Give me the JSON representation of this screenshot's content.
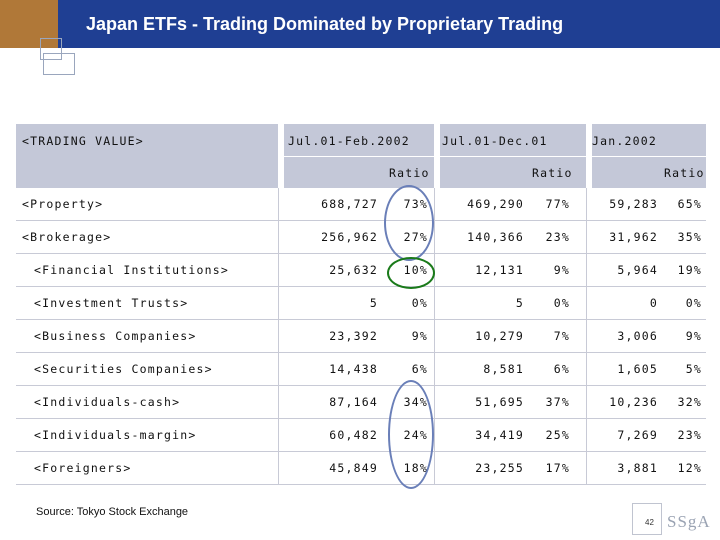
{
  "title": "Japan ETFs - Trading Dominated by Proprietary Trading",
  "table": {
    "header": {
      "label": "<TRADING VALUE>",
      "period1": "Jul.01-Feb.2002",
      "period2": "Jul.01-Dec.01",
      "period3": "Jan.2002",
      "ratio": "Ratio"
    },
    "rows": [
      {
        "label": "<Property>",
        "v1": "688,727",
        "r1": "73%",
        "v2": "469,290",
        "r2": "77%",
        "v3": "59,283",
        "r3": "65%"
      },
      {
        "label": "<Brokerage>",
        "v1": "256,962",
        "r1": "27%",
        "v2": "140,366",
        "r2": "23%",
        "v3": "31,962",
        "r3": "35%"
      },
      {
        "label": "<Financial Institutions>",
        "v1": "25,632",
        "r1": "10%",
        "v2": "12,131",
        "r2": "9%",
        "v3": "5,964",
        "r3": "19%"
      },
      {
        "label": "<Investment Trusts>",
        "v1": "5",
        "r1": "0%",
        "v2": "5",
        "r2": "0%",
        "v3": "0",
        "r3": "0%"
      },
      {
        "label": "<Business Companies>",
        "v1": "23,392",
        "r1": "9%",
        "v2": "10,279",
        "r2": "7%",
        "v3": "3,006",
        "r3": "9%"
      },
      {
        "label": "<Securities Companies>",
        "v1": "14,438",
        "r1": "6%",
        "v2": "8,581",
        "r2": "6%",
        "v3": "1,605",
        "r3": "5%"
      },
      {
        "label": "<Individuals-cash>",
        "v1": "87,164",
        "r1": "34%",
        "v2": "51,695",
        "r2": "37%",
        "v3": "10,236",
        "r3": "32%"
      },
      {
        "label": "<Individuals-margin>",
        "v1": "60,482",
        "r1": "24%",
        "v2": "34,419",
        "r2": "25%",
        "v3": "7,269",
        "r3": "23%"
      },
      {
        "label": "<Foreigners>",
        "v1": "45,849",
        "r1": "18%",
        "v2": "23,255",
        "r2": "17%",
        "v3": "3,881",
        "r3": "12%"
      }
    ]
  },
  "source": "Source: Tokyo Stock Exchange",
  "page_number": "42",
  "logo_text": "SSgA",
  "colors": {
    "title_bar": "#1f3f93",
    "accent_block": "#b07838",
    "header_band": "#c4c8d8",
    "oval_blue": "#6a7fb8",
    "oval_green": "#1a7a1a"
  }
}
